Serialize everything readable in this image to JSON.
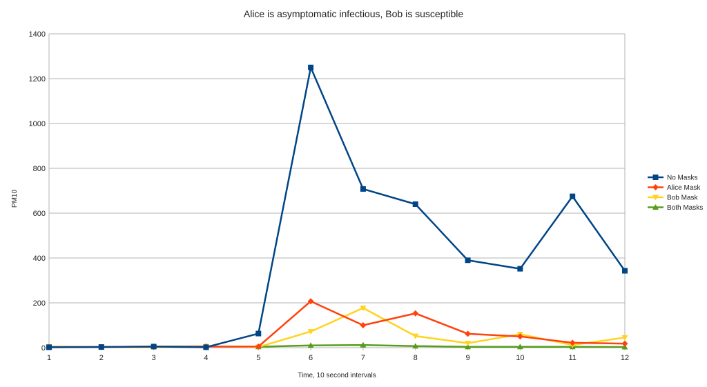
{
  "chart_data": {
    "type": "line",
    "title": "Alice is asymptomatic infectious, Bob is susceptible",
    "xlabel": "Time, 10 second intervals",
    "ylabel": "PM10",
    "x": [
      1,
      2,
      3,
      4,
      5,
      6,
      7,
      8,
      9,
      10,
      11,
      12
    ],
    "ylim": [
      0,
      1400
    ],
    "yticks": [
      0,
      200,
      400,
      600,
      800,
      1000,
      1200,
      1400
    ],
    "grid": true,
    "legend_position": "right",
    "series": [
      {
        "name": "No Masks",
        "color": "#004586",
        "marker": "square",
        "values": [
          2,
          3,
          5,
          2,
          63,
          1250,
          708,
          640,
          390,
          352,
          675,
          343
        ]
      },
      {
        "name": "Alice Mask",
        "color": "#ff420e",
        "marker": "diamond",
        "values": [
          3,
          3,
          4,
          5,
          5,
          207,
          100,
          153,
          62,
          50,
          22,
          18
        ]
      },
      {
        "name": "Bob Mask",
        "color": "#ffd320",
        "marker": "triangle-down",
        "values": [
          5,
          3,
          2,
          6,
          3,
          72,
          177,
          52,
          20,
          60,
          12,
          45
        ]
      },
      {
        "name": "Both Masks",
        "color": "#579d1c",
        "marker": "triangle-up",
        "values": [
          2,
          3,
          5,
          6,
          4,
          10,
          12,
          7,
          4,
          4,
          4,
          3
        ]
      }
    ]
  }
}
